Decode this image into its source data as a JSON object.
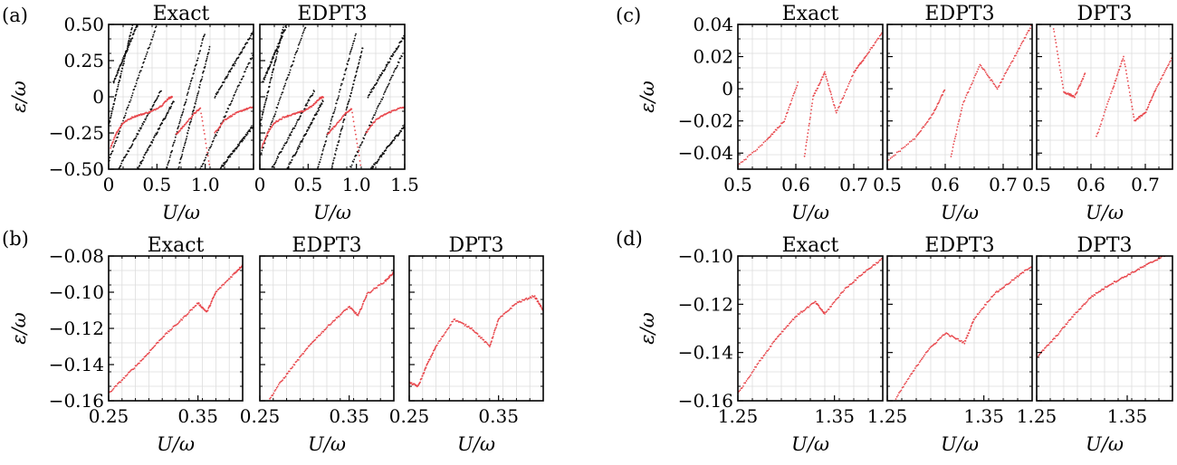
{
  "panel_labels": [
    "(a)",
    "(b)",
    "(c)",
    "(d)"
  ],
  "axis_labels": {
    "x": "U/ω",
    "y": "ε/ω"
  },
  "colors": {
    "red": "#e8474c",
    "black": "#111111",
    "grid": "#dddddd"
  },
  "chart_data": [
    {
      "panel": "(a)",
      "type": "scatter",
      "subplots": [
        "Exact",
        "EDPT3"
      ],
      "xlabel": "U/ω",
      "ylabel": "ε/ω",
      "xlim": [
        0,
        1.5
      ],
      "ylim": [
        -0.5,
        0.5
      ],
      "xticks": [
        {
          "v": 0,
          "t": "0"
        },
        {
          "v": 0.5,
          "t": "0.5"
        },
        {
          "v": 1.0,
          "t": "1.0"
        },
        {
          "v": 1.5,
          "t": "1.5"
        }
      ],
      "yticks": [
        {
          "v": 0.5,
          "t": "0.50"
        },
        {
          "v": 0.25,
          "t": "0.25"
        },
        {
          "v": 0,
          "t": "0"
        },
        {
          "v": -0.25,
          "t": "−0.25"
        },
        {
          "v": -0.5,
          "t": "−0.50"
        }
      ],
      "red_series": [
        [
          0.02,
          -0.35
        ],
        [
          0.08,
          -0.25
        ],
        [
          0.15,
          -0.18
        ],
        [
          0.25,
          -0.14
        ],
        [
          0.35,
          -0.12
        ],
        [
          0.45,
          -0.1
        ],
        [
          0.55,
          -0.06
        ],
        [
          0.62,
          -0.01
        ],
        [
          0.66,
          0.0
        ],
        [
          0.7,
          -0.26
        ],
        [
          0.78,
          -0.2
        ],
        [
          0.88,
          -0.12
        ],
        [
          0.95,
          -0.08
        ],
        [
          1.05,
          -0.5
        ],
        [
          1.1,
          -0.25
        ],
        [
          1.2,
          -0.16
        ],
        [
          1.3,
          -0.12
        ],
        [
          1.4,
          -0.09
        ],
        [
          1.5,
          -0.07
        ]
      ],
      "black_bands": [
        [
          [
            0.0,
            -0.45
          ],
          [
            0.5,
            0.5
          ]
        ],
        [
          [
            0.0,
            -0.2
          ],
          [
            0.25,
            0.5
          ]
        ],
        [
          [
            0.1,
            -0.5
          ],
          [
            0.55,
            0.05
          ]
        ],
        [
          [
            0.3,
            -0.5
          ],
          [
            0.68,
            -0.02
          ]
        ],
        [
          [
            0.6,
            -0.5
          ],
          [
            1.0,
            0.45
          ]
        ],
        [
          [
            0.72,
            -0.5
          ],
          [
            1.05,
            0.35
          ]
        ],
        [
          [
            0.95,
            -0.5
          ],
          [
            1.5,
            0.3
          ]
        ],
        [
          [
            1.15,
            -0.5
          ],
          [
            1.5,
            -0.2
          ]
        ],
        [
          [
            1.1,
            0.0
          ],
          [
            1.5,
            0.45
          ]
        ],
        [
          [
            0.05,
            0.1
          ],
          [
            0.3,
            0.5
          ]
        ]
      ]
    },
    {
      "panel": "(b)",
      "type": "scatter",
      "subplots": [
        "Exact",
        "EDPT3",
        "DPT3"
      ],
      "xlabel": "U/ω",
      "ylabel": "ε/ω",
      "xlim": [
        0.25,
        0.4
      ],
      "ylim": [
        -0.16,
        -0.08
      ],
      "xticks": [
        {
          "v": 0.25,
          "t": "0.25"
        },
        {
          "v": 0.35,
          "t": "0.35"
        }
      ],
      "yticks": [
        {
          "v": -0.08,
          "t": "−0.08"
        },
        {
          "v": -0.1,
          "t": "−0.10"
        },
        {
          "v": -0.12,
          "t": "−0.12"
        },
        {
          "v": -0.14,
          "t": "−0.14"
        },
        {
          "v": -0.16,
          "t": "−0.16"
        }
      ],
      "series": [
        {
          "points": [
            [
              0.25,
              -0.156
            ],
            [
              0.27,
              -0.146
            ],
            [
              0.29,
              -0.136
            ],
            [
              0.31,
              -0.125
            ],
            [
              0.33,
              -0.116
            ],
            [
              0.35,
              -0.106
            ],
            [
              0.36,
              -0.111
            ],
            [
              0.37,
              -0.1
            ],
            [
              0.39,
              -0.09
            ],
            [
              0.4,
              -0.085
            ]
          ]
        },
        {
          "points": [
            [
              0.25,
              -0.168
            ],
            [
              0.27,
              -0.152
            ],
            [
              0.29,
              -0.139
            ],
            [
              0.31,
              -0.127
            ],
            [
              0.33,
              -0.117
            ],
            [
              0.35,
              -0.108
            ],
            [
              0.36,
              -0.113
            ],
            [
              0.37,
              -0.101
            ],
            [
              0.39,
              -0.094
            ],
            [
              0.4,
              -0.089
            ]
          ]
        },
        {
          "points": [
            [
              0.25,
              -0.15
            ],
            [
              0.26,
              -0.152
            ],
            [
              0.27,
              -0.14
            ],
            [
              0.28,
              -0.13
            ],
            [
              0.3,
              -0.115
            ],
            [
              0.32,
              -0.12
            ],
            [
              0.34,
              -0.13
            ],
            [
              0.35,
              -0.115
            ],
            [
              0.37,
              -0.106
            ],
            [
              0.39,
              -0.102
            ],
            [
              0.4,
              -0.11
            ]
          ]
        }
      ]
    },
    {
      "panel": "(c)",
      "type": "scatter",
      "subplots": [
        "Exact",
        "EDPT3",
        "DPT3"
      ],
      "xlabel": "U/ω",
      "ylabel": "ε/ω",
      "xlim": [
        0.5,
        0.75
      ],
      "ylim": [
        -0.05,
        0.04
      ],
      "xticks": [
        {
          "v": 0.5,
          "t": "0.5"
        },
        {
          "v": 0.6,
          "t": "0.6"
        },
        {
          "v": 0.7,
          "t": "0.7"
        }
      ],
      "yticks": [
        {
          "v": 0.04,
          "t": "0.04"
        },
        {
          "v": 0.02,
          "t": "0.02"
        },
        {
          "v": 0,
          "t": "0"
        },
        {
          "v": -0.02,
          "t": "−0.02"
        },
        {
          "v": -0.04,
          "t": "−0.04"
        }
      ],
      "series": [
        {
          "points": [
            [
              0.5,
              -0.048
            ],
            [
              0.55,
              -0.032
            ],
            [
              0.58,
              -0.02
            ],
            [
              0.605,
              0.005
            ],
            [
              0.615,
              -0.042
            ],
            [
              0.63,
              -0.005
            ],
            [
              0.65,
              0.01
            ],
            [
              0.67,
              -0.015
            ],
            [
              0.7,
              0.01
            ],
            [
              0.72,
              0.02
            ],
            [
              0.75,
              0.035
            ]
          ]
        },
        {
          "points": [
            [
              0.5,
              -0.045
            ],
            [
              0.55,
              -0.03
            ],
            [
              0.58,
              -0.015
            ],
            [
              0.6,
              0.0
            ],
            [
              0.61,
              -0.042
            ],
            [
              0.63,
              -0.01
            ],
            [
              0.66,
              0.015
            ],
            [
              0.69,
              0.0
            ],
            [
              0.72,
              0.02
            ],
            [
              0.75,
              0.04
            ]
          ]
        },
        {
          "points": [
            [
              0.53,
              0.04
            ],
            [
              0.55,
              -0.002
            ],
            [
              0.57,
              -0.005
            ],
            [
              0.59,
              0.01
            ],
            [
              0.6,
              0.025
            ],
            [
              0.61,
              -0.03
            ],
            [
              0.64,
              0.0
            ],
            [
              0.66,
              0.02
            ],
            [
              0.68,
              -0.02
            ],
            [
              0.7,
              -0.015
            ],
            [
              0.72,
              0.0
            ],
            [
              0.75,
              0.02
            ]
          ]
        }
      ]
    },
    {
      "panel": "(d)",
      "type": "scatter",
      "subplots": [
        "Exact",
        "EDPT3",
        "DPT3"
      ],
      "xlabel": "U/ω",
      "ylabel": "ε/ω",
      "xlim": [
        1.25,
        1.4
      ],
      "ylim": [
        -0.16,
        -0.1
      ],
      "xticks": [
        {
          "v": 1.25,
          "t": "1.25"
        },
        {
          "v": 1.35,
          "t": "1.35"
        }
      ],
      "yticks": [
        {
          "v": -0.1,
          "t": "−0.10"
        },
        {
          "v": -0.12,
          "t": "−0.12"
        },
        {
          "v": -0.14,
          "t": "−0.14"
        },
        {
          "v": -0.16,
          "t": "−0.16"
        }
      ],
      "series": [
        {
          "points": [
            [
              1.25,
              -0.157
            ],
            [
              1.27,
              -0.145
            ],
            [
              1.29,
              -0.134
            ],
            [
              1.31,
              -0.125
            ],
            [
              1.33,
              -0.119
            ],
            [
              1.34,
              -0.124
            ],
            [
              1.36,
              -0.114
            ],
            [
              1.38,
              -0.107
            ],
            [
              1.4,
              -0.101
            ]
          ]
        },
        {
          "points": [
            [
              1.25,
              -0.165
            ],
            [
              1.27,
              -0.152
            ],
            [
              1.29,
              -0.14
            ],
            [
              1.31,
              -0.132
            ],
            [
              1.33,
              -0.136
            ],
            [
              1.34,
              -0.126
            ],
            [
              1.36,
              -0.116
            ],
            [
              1.38,
              -0.11
            ],
            [
              1.4,
              -0.104
            ]
          ]
        },
        {
          "points": [
            [
              1.25,
              -0.142
            ],
            [
              1.27,
              -0.134
            ],
            [
              1.29,
              -0.125
            ],
            [
              1.31,
              -0.117
            ],
            [
              1.33,
              -0.112
            ],
            [
              1.35,
              -0.108
            ],
            [
              1.37,
              -0.104
            ],
            [
              1.39,
              -0.1
            ],
            [
              1.4,
              -0.098
            ]
          ]
        }
      ]
    }
  ]
}
